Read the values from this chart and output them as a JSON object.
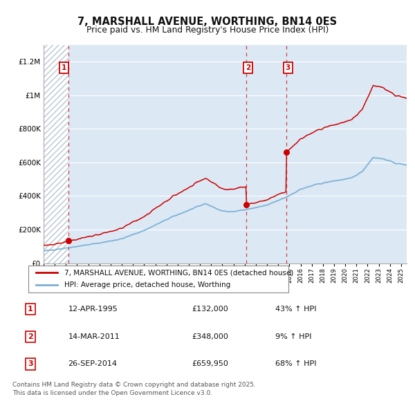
{
  "title": "7, MARSHALL AVENUE, WORTHING, BN14 0ES",
  "subtitle": "Price paid vs. HM Land Registry's House Price Index (HPI)",
  "ylim": [
    0,
    1300000
  ],
  "yticks": [
    0,
    200000,
    400000,
    600000,
    800000,
    1000000,
    1200000
  ],
  "ytick_labels": [
    "£0",
    "£200K",
    "£400K",
    "£600K",
    "£800K",
    "£1M",
    "£1.2M"
  ],
  "hpi_color": "#7bafd4",
  "price_color": "#cc0000",
  "bg_color": "#dce9f5",
  "grid_color": "#ffffff",
  "t1": 1995.25,
  "t2": 2011.167,
  "t3": 2014.708,
  "sale_prices": [
    132000,
    348000,
    659950
  ],
  "sale_labels": [
    "1",
    "2",
    "3"
  ],
  "legend_price_label": "7, MARSHALL AVENUE, WORTHING, BN14 0ES (detached house)",
  "legend_hpi_label": "HPI: Average price, detached house, Worthing",
  "table_entries": [
    {
      "num": "1",
      "date": "12-APR-1995",
      "price": "£132,000",
      "change": "43% ↑ HPI"
    },
    {
      "num": "2",
      "date": "14-MAR-2011",
      "price": "£348,000",
      "change": "9% ↑ HPI"
    },
    {
      "num": "3",
      "date": "26-SEP-2014",
      "price": "£659,950",
      "change": "68% ↑ HPI"
    }
  ],
  "footnote": "Contains HM Land Registry data © Crown copyright and database right 2025.\nThis data is licensed under the Open Government Licence v3.0."
}
